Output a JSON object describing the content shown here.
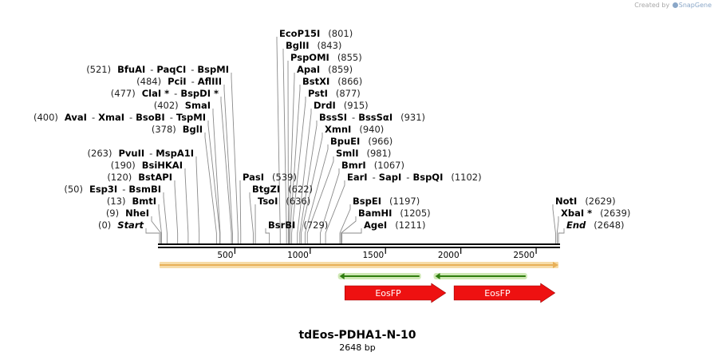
{
  "credit": {
    "prefix": "Created by",
    "brand": "SnapGene"
  },
  "map": {
    "name": "tdEos-PDHA1-N-10",
    "length_text": "2648 bp",
    "length_bp": 2648,
    "ticks": [
      500,
      1000,
      1500,
      2000,
      2500
    ],
    "colors": {
      "backbone": "#000000",
      "orf": "#e8b058",
      "feature": "#ee1111",
      "primer": "#2f7d10"
    }
  },
  "sites": [
    {
      "pos": 0,
      "pos_text": "(0)",
      "labels": [
        "Start"
      ],
      "kind": "end"
    },
    {
      "pos": 9,
      "pos_text": "(9)",
      "labels": [
        "NheI"
      ]
    },
    {
      "pos": 13,
      "pos_text": "(13)",
      "labels": [
        "BmtI"
      ]
    },
    {
      "pos": 50,
      "pos_text": "(50)",
      "labels": [
        "Esp3I",
        "BsmBI"
      ]
    },
    {
      "pos": 120,
      "pos_text": "(120)",
      "labels": [
        "BstAPI"
      ]
    },
    {
      "pos": 190,
      "pos_text": "(190)",
      "labels": [
        "BsiHKAI"
      ]
    },
    {
      "pos": 263,
      "pos_text": "(263)",
      "labels": [
        "PvuII",
        "MspA1I"
      ]
    },
    {
      "pos": 378,
      "pos_text": "(378)",
      "labels": [
        "BglI"
      ]
    },
    {
      "pos": 400,
      "pos_text": "(400)",
      "labels": [
        "AvaI",
        "XmaI",
        "BsoBI",
        "TspMI"
      ]
    },
    {
      "pos": 402,
      "pos_text": "(402)",
      "labels": [
        "SmaI"
      ]
    },
    {
      "pos": 477,
      "pos_text": "(477)",
      "labels": [
        "ClaI *",
        "BspDI *"
      ]
    },
    {
      "pos": 484,
      "pos_text": "(484)",
      "labels": [
        "PciI",
        "AflIII"
      ]
    },
    {
      "pos": 521,
      "pos_text": "(521)",
      "labels": [
        "BfuAI",
        "PaqCI",
        "BspMI"
      ]
    },
    {
      "pos": 539,
      "pos_text": "(539)",
      "labels": [
        "PasI"
      ]
    },
    {
      "pos": 622,
      "pos_text": "(622)",
      "labels": [
        "BtgZI"
      ]
    },
    {
      "pos": 636,
      "pos_text": "(636)",
      "labels": [
        "TsoI"
      ]
    },
    {
      "pos": 729,
      "pos_text": "(729)",
      "labels": [
        "BsrBI"
      ]
    },
    {
      "pos": 801,
      "pos_text": "(801)",
      "labels": [
        "EcoP15I"
      ]
    },
    {
      "pos": 843,
      "pos_text": "(843)",
      "labels": [
        "BglII"
      ]
    },
    {
      "pos": 855,
      "pos_text": "(855)",
      "labels": [
        "PspOMI"
      ]
    },
    {
      "pos": 859,
      "pos_text": "(859)",
      "labels": [
        "ApaI"
      ]
    },
    {
      "pos": 866,
      "pos_text": "(866)",
      "labels": [
        "BstXI"
      ]
    },
    {
      "pos": 877,
      "pos_text": "(877)",
      "labels": [
        "PstI"
      ]
    },
    {
      "pos": 915,
      "pos_text": "(915)",
      "labels": [
        "DrdI"
      ]
    },
    {
      "pos": 931,
      "pos_text": "(931)",
      "labels": [
        "BssSI",
        "BssSαI"
      ]
    },
    {
      "pos": 940,
      "pos_text": "(940)",
      "labels": [
        "XmnI"
      ]
    },
    {
      "pos": 966,
      "pos_text": "(966)",
      "labels": [
        "BpuEI"
      ]
    },
    {
      "pos": 981,
      "pos_text": "(981)",
      "labels": [
        "SmlI"
      ]
    },
    {
      "pos": 1067,
      "pos_text": "(1067)",
      "labels": [
        "BmrI"
      ]
    },
    {
      "pos": 1102,
      "pos_text": "(1102)",
      "labels": [
        "EarI",
        "SapI",
        "BspQI"
      ]
    },
    {
      "pos": 1197,
      "pos_text": "(1197)",
      "labels": [
        "BspEI"
      ]
    },
    {
      "pos": 1205,
      "pos_text": "(1205)",
      "labels": [
        "BamHI"
      ]
    },
    {
      "pos": 1211,
      "pos_text": "(1211)",
      "labels": [
        "AgeI"
      ]
    },
    {
      "pos": 2629,
      "pos_text": "(2629)",
      "labels": [
        "NotI"
      ]
    },
    {
      "pos": 2639,
      "pos_text": "(2639)",
      "labels": [
        "XbaI *"
      ]
    },
    {
      "pos": 2648,
      "pos_text": "(2648)",
      "labels": [
        "End"
      ],
      "kind": "end"
    }
  ],
  "features": [
    {
      "name": "EosFP",
      "start": 1230,
      "end": 1900,
      "type": "gene",
      "direction": "forward"
    },
    {
      "name": "EosFP",
      "start": 1955,
      "end": 2625,
      "type": "gene",
      "direction": "forward"
    }
  ],
  "primers": [
    {
      "start": 1195,
      "end": 1725,
      "direction": "reverse"
    },
    {
      "start": 1830,
      "end": 2430,
      "direction": "reverse"
    }
  ],
  "orf": {
    "start": 0,
    "end": 2648,
    "direction": "forward"
  }
}
